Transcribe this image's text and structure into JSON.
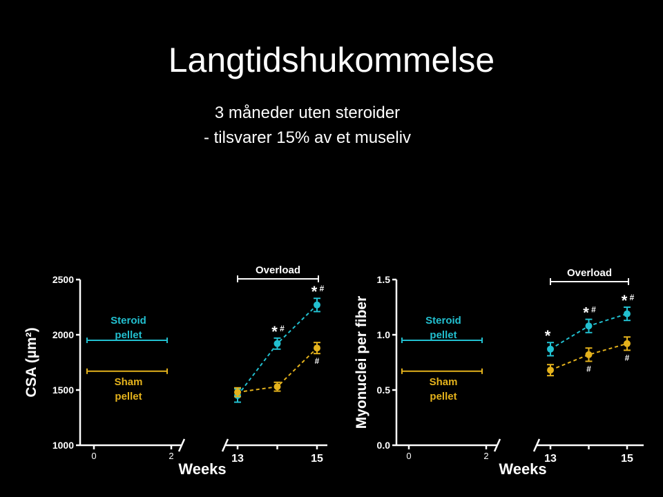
{
  "slide": {
    "title": "Langtidshukommelse",
    "subtitle_line1": "3 måneder uten steroider",
    "subtitle_line2": "- tilsvarer 15% av et museliv"
  },
  "colors": {
    "background": "#000000",
    "steroid": "#22c0d0",
    "sham": "#e4b21c",
    "text": "#ffffff"
  },
  "chart_data": [
    {
      "type": "line",
      "ylabel": "CSA (µm²)",
      "xlabel": "Weeks",
      "ylim": [
        1000,
        2500
      ],
      "yticks": [
        "1000",
        "1500",
        "2000",
        "2500"
      ],
      "xticks": [
        "0",
        "2",
        "13",
        "15"
      ],
      "overload_label": "Overload",
      "reference_lines": [
        {
          "name": "Steroid pellet",
          "label_lines": [
            "Steroid",
            "pellet"
          ],
          "value": 1950
        },
        {
          "name": "Sham pellet",
          "label_lines": [
            "Sham",
            "pellet"
          ],
          "value": 1670
        }
      ],
      "series": [
        {
          "name": "Steroid pellet",
          "x": [
            13,
            14,
            15
          ],
          "y": [
            1450,
            1920,
            2270
          ],
          "err": [
            60,
            50,
            60
          ],
          "marks": [
            "",
            "*#",
            "*#"
          ]
        },
        {
          "name": "Sham pellet",
          "x": [
            13,
            14,
            15
          ],
          "y": [
            1480,
            1530,
            1880
          ],
          "err": [
            40,
            40,
            50
          ],
          "marks": [
            "",
            "",
            "#"
          ]
        }
      ]
    },
    {
      "type": "line",
      "ylabel": "Myonuclei per fiber",
      "xlabel": "Weeks",
      "ylim": [
        0.0,
        1.5
      ],
      "yticks": [
        "0.0",
        "0.5",
        "1.0",
        "1.5"
      ],
      "xticks": [
        "0",
        "2",
        "13",
        "15"
      ],
      "overload_label": "Overload",
      "reference_lines": [
        {
          "name": "Steroid pellet",
          "label_lines": [
            "Steroid",
            "pellet"
          ],
          "value": 0.95
        },
        {
          "name": "Sham pellet",
          "label_lines": [
            "Sham",
            "pellet"
          ],
          "value": 0.67
        }
      ],
      "series": [
        {
          "name": "Steroid pellet",
          "x": [
            13,
            14,
            15
          ],
          "y": [
            0.87,
            1.08,
            1.19
          ],
          "err": [
            0.06,
            0.06,
            0.06
          ],
          "marks": [
            "*",
            "*#",
            "*#"
          ]
        },
        {
          "name": "Sham pellet",
          "x": [
            13,
            14,
            15
          ],
          "y": [
            0.68,
            0.82,
            0.92
          ],
          "err": [
            0.05,
            0.06,
            0.06
          ],
          "marks": [
            "",
            "#",
            "#"
          ]
        }
      ]
    }
  ]
}
